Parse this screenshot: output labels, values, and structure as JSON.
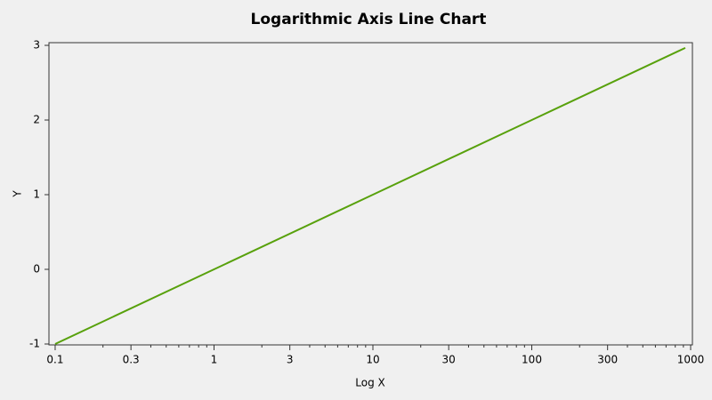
{
  "chart_data": {
    "type": "line",
    "title": "Logarithmic Axis Line Chart",
    "x_label": "Log X",
    "y_label": "Y",
    "x": [
      0.1,
      1,
      10,
      100,
      925
    ],
    "series": [
      {
        "name": "Y",
        "color": "#58a10c",
        "values": [
          -1,
          0,
          1,
          2,
          2.966
        ]
      }
    ],
    "x_log": true,
    "xlim": [
      0.0914,
      1026
    ],
    "ylim": [
      -1.012,
      3.036
    ],
    "xticks": [
      0.1,
      0.3,
      1,
      3,
      10,
      30,
      100,
      300,
      1000
    ],
    "minor_xticks": [
      0.2,
      0.4,
      0.5,
      0.6,
      0.7,
      0.8,
      0.9,
      2,
      4,
      5,
      6,
      7,
      8,
      9,
      20,
      40,
      50,
      60,
      70,
      80,
      90,
      200,
      400,
      500,
      600,
      700,
      800,
      900
    ],
    "yticks": [
      -1,
      0,
      1,
      2,
      3
    ],
    "legend": false
  }
}
